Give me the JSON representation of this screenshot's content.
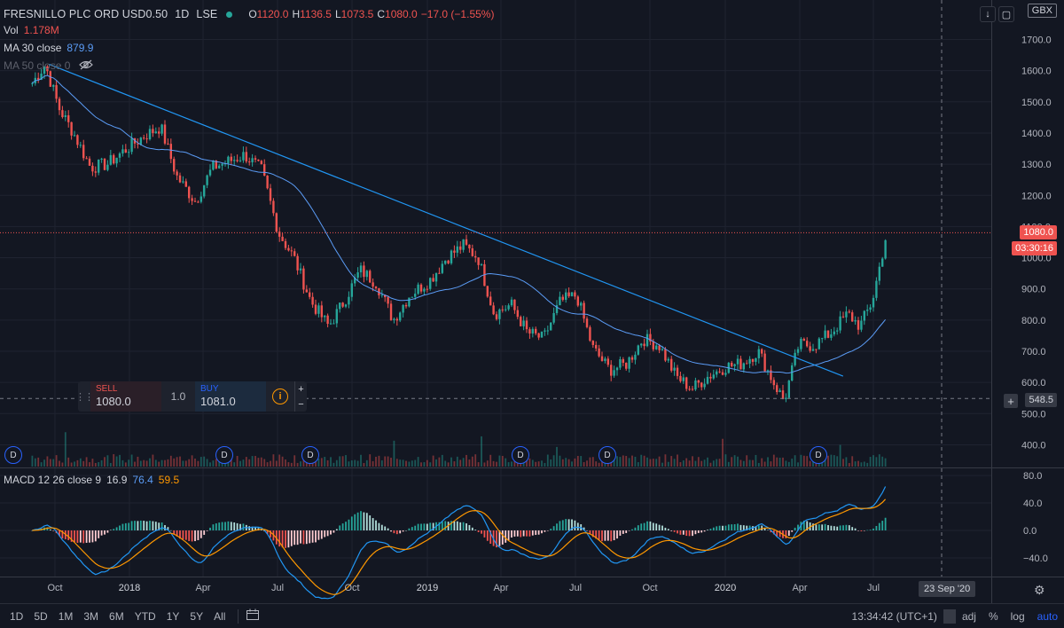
{
  "header": {
    "title": "FRESNILLO PLC ORD USD0.50",
    "interval": "1D",
    "exchange": "LSE",
    "ohlc": [
      {
        "label": "O",
        "value": "1120.0"
      },
      {
        "label": "H",
        "value": "1136.5"
      },
      {
        "label": "L",
        "value": "1073.5"
      },
      {
        "label": "C",
        "value": "1080.0"
      }
    ],
    "change": "−17.0 (−1.55%)",
    "currency": "GBX"
  },
  "indicators": {
    "vol": {
      "label": "Vol",
      "value": "1.178M"
    },
    "ma30": {
      "label": "MA 30 close",
      "value": "879.9"
    },
    "ma50": {
      "label": "MA 50 close 0"
    },
    "macd": {
      "label": "MACD 12 26 close 9",
      "macd": "16.9",
      "signal": "76.4",
      "hist": "59.5"
    }
  },
  "price_axis": {
    "ticks": [
      "1700.0",
      "1600.0",
      "1500.0",
      "1400.0",
      "1300.0",
      "1200.0",
      "1100.0",
      "1000.0",
      "900.0",
      "800.0",
      "700.0",
      "600.0",
      "500.0",
      "400.0"
    ],
    "last_price": "1080.0",
    "countdown": "03:30:16",
    "cursor_price": "548.5"
  },
  "macd_axis": {
    "ticks": [
      "80.0",
      "40.0",
      "0.0",
      "−40.0"
    ]
  },
  "time_axis": {
    "labels": [
      {
        "text": "Oct",
        "year": false
      },
      {
        "text": "2018",
        "year": true
      },
      {
        "text": "Apr",
        "year": false
      },
      {
        "text": "Jul",
        "year": false
      },
      {
        "text": "Oct",
        "year": false
      },
      {
        "text": "2019",
        "year": true
      },
      {
        "text": "Apr",
        "year": false
      },
      {
        "text": "Jul",
        "year": false
      },
      {
        "text": "Oct",
        "year": false
      },
      {
        "text": "2020",
        "year": true
      },
      {
        "text": "Apr",
        "year": false
      },
      {
        "text": "Jul",
        "year": false
      }
    ],
    "cursor_date": "23 Sep '20"
  },
  "trade_panel": {
    "sell_label": "SELL",
    "sell_price_a": "10",
    "sell_price_b": "80.0",
    "qty": "1.0",
    "buy_label": "BUY",
    "buy_price_a": "10",
    "buy_price_b": "81.0",
    "info_icon": "i",
    "plus": "+",
    "minus": "−"
  },
  "dividend_marker": "D",
  "bottom_bar": {
    "ranges": [
      "1D",
      "5D",
      "1M",
      "3M",
      "6M",
      "YTD",
      "1Y",
      "5Y",
      "All"
    ],
    "clock": "13:34:42 (UTC+1)",
    "adj": "adj",
    "percent": "%",
    "log": "log",
    "auto": "auto"
  },
  "colors": {
    "background": "#131722",
    "up": "#26a69a",
    "down": "#ef5350",
    "ma30": "#5b9cf6",
    "trendline": "#2196f3",
    "macd_line": "#2196f3",
    "signal_line": "#ff9800"
  },
  "chart_data": {
    "type": "candlestick",
    "ylabel": "",
    "ylim": [
      360,
      1780
    ],
    "series": [
      {
        "name": "close",
        "x": [
          "2017-08-30",
          "2017-09-15",
          "2017-10-02",
          "2017-10-20",
          "2017-11-10",
          "2017-12-01",
          "2017-12-20",
          "2018-01-15",
          "2018-02-05",
          "2018-02-25",
          "2018-03-20",
          "2018-04-10",
          "2018-05-01",
          "2018-05-20",
          "2018-06-10",
          "2018-07-01",
          "2018-07-20",
          "2018-08-10",
          "2018-09-01",
          "2018-09-20",
          "2018-10-10",
          "2018-10-30",
          "2018-11-20",
          "2018-12-10",
          "2019-01-05",
          "2019-01-25",
          "2019-02-15",
          "2019-03-05",
          "2019-03-25",
          "2019-04-15",
          "2019-05-05",
          "2019-05-25",
          "2019-06-15",
          "2019-07-05",
          "2019-07-25",
          "2019-08-15",
          "2019-09-05",
          "2019-09-25",
          "2019-10-15",
          "2019-11-05",
          "2019-11-25",
          "2019-12-15",
          "2020-01-05",
          "2020-01-25",
          "2020-02-15",
          "2020-03-05",
          "2020-03-18",
          "2020-04-05",
          "2020-04-25",
          "2020-05-15",
          "2020-06-05",
          "2020-06-20",
          "2020-07-05",
          "2020-07-15",
          "2020-07-23"
        ],
        "values": [
          1560,
          1620,
          1480,
          1400,
          1290,
          1300,
          1340,
          1390,
          1420,
          1260,
          1180,
          1290,
          1310,
          1330,
          1280,
          1080,
          1000,
          860,
          780,
          860,
          960,
          920,
          800,
          880,
          930,
          1000,
          1040,
          1000,
          820,
          850,
          760,
          740,
          860,
          880,
          710,
          640,
          660,
          740,
          720,
          620,
          580,
          620,
          650,
          660,
          700,
          600,
          540,
          720,
          720,
          760,
          820,
          780,
          860,
          980,
          1080
        ]
      },
      {
        "name": "MA 30 close",
        "last": 879.9
      },
      {
        "name": "MACD",
        "last": 16.9
      },
      {
        "name": "Signal",
        "last": 76.4
      },
      {
        "name": "Histogram",
        "last": 59.5
      }
    ],
    "volume_last": "1.178M",
    "trendline": {
      "from": {
        "x": "2017-09-20",
        "y": 1620
      },
      "to": {
        "x": "2020-05-30",
        "y": 620
      }
    },
    "macd_ylim": [
      -60,
      100
    ]
  }
}
